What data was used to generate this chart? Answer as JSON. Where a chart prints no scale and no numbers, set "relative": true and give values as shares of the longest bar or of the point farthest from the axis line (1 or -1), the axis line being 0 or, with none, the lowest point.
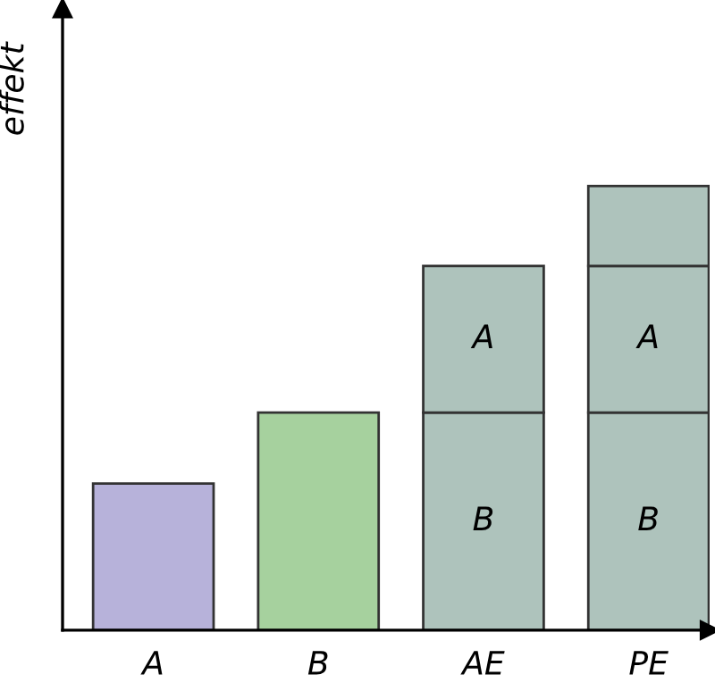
{
  "chart_data": {
    "type": "bar",
    "relative": true,
    "stacked": true,
    "ylabel": "effekt",
    "categories": [
      "A",
      "B",
      "AE",
      "PE"
    ],
    "series": [
      {
        "colors": [
          "#b7b2da",
          "#a6d19e",
          "#aec3bc",
          "#aec3bc"
        ],
        "values": [
          0.33,
          0.49,
          0.49,
          0.49
        ]
      },
      {
        "colors": [
          null,
          null,
          "#aec3bc",
          "#aec3bc"
        ],
        "values": [
          null,
          null,
          0.33,
          0.33
        ]
      },
      {
        "colors": [
          null,
          null,
          null,
          "#aec3bc"
        ],
        "values": [
          null,
          null,
          null,
          0.18
        ]
      }
    ],
    "annotations": [
      "B",
      "A",
      "B",
      "A"
    ],
    "grid": false,
    "legend": false
  }
}
